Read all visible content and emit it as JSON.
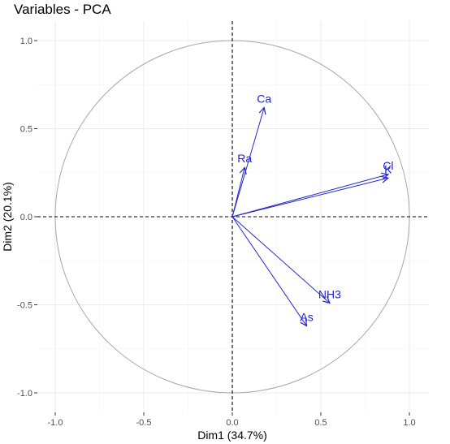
{
  "chart_data": {
    "type": "scatter",
    "title": "Variables - PCA",
    "xlabel": "Dim1 (34.7%)",
    "ylabel": "Dim2 (20.1%)",
    "xlim": [
      -1.1,
      1.1
    ],
    "ylim": [
      -1.05,
      1.05
    ],
    "x_ticks": [
      "-1.0",
      "-0.5",
      "0.0",
      "0.5",
      "1.0"
    ],
    "y_ticks": [
      "-1.0",
      "-0.5",
      "0.0",
      "0.5",
      "1.0"
    ],
    "grid": true,
    "unit_circle": true,
    "color": "#2626c9",
    "variables": [
      {
        "name": "Ca",
        "x": 0.18,
        "y": 0.62
      },
      {
        "name": "Ra",
        "x": 0.07,
        "y": 0.28
      },
      {
        "name": "Cl",
        "x": 0.88,
        "y": 0.24
      },
      {
        "name": "K",
        "x": 0.88,
        "y": 0.22
      },
      {
        "name": "NH3",
        "x": 0.55,
        "y": -0.49
      },
      {
        "name": "As",
        "x": 0.42,
        "y": -0.62
      }
    ]
  }
}
